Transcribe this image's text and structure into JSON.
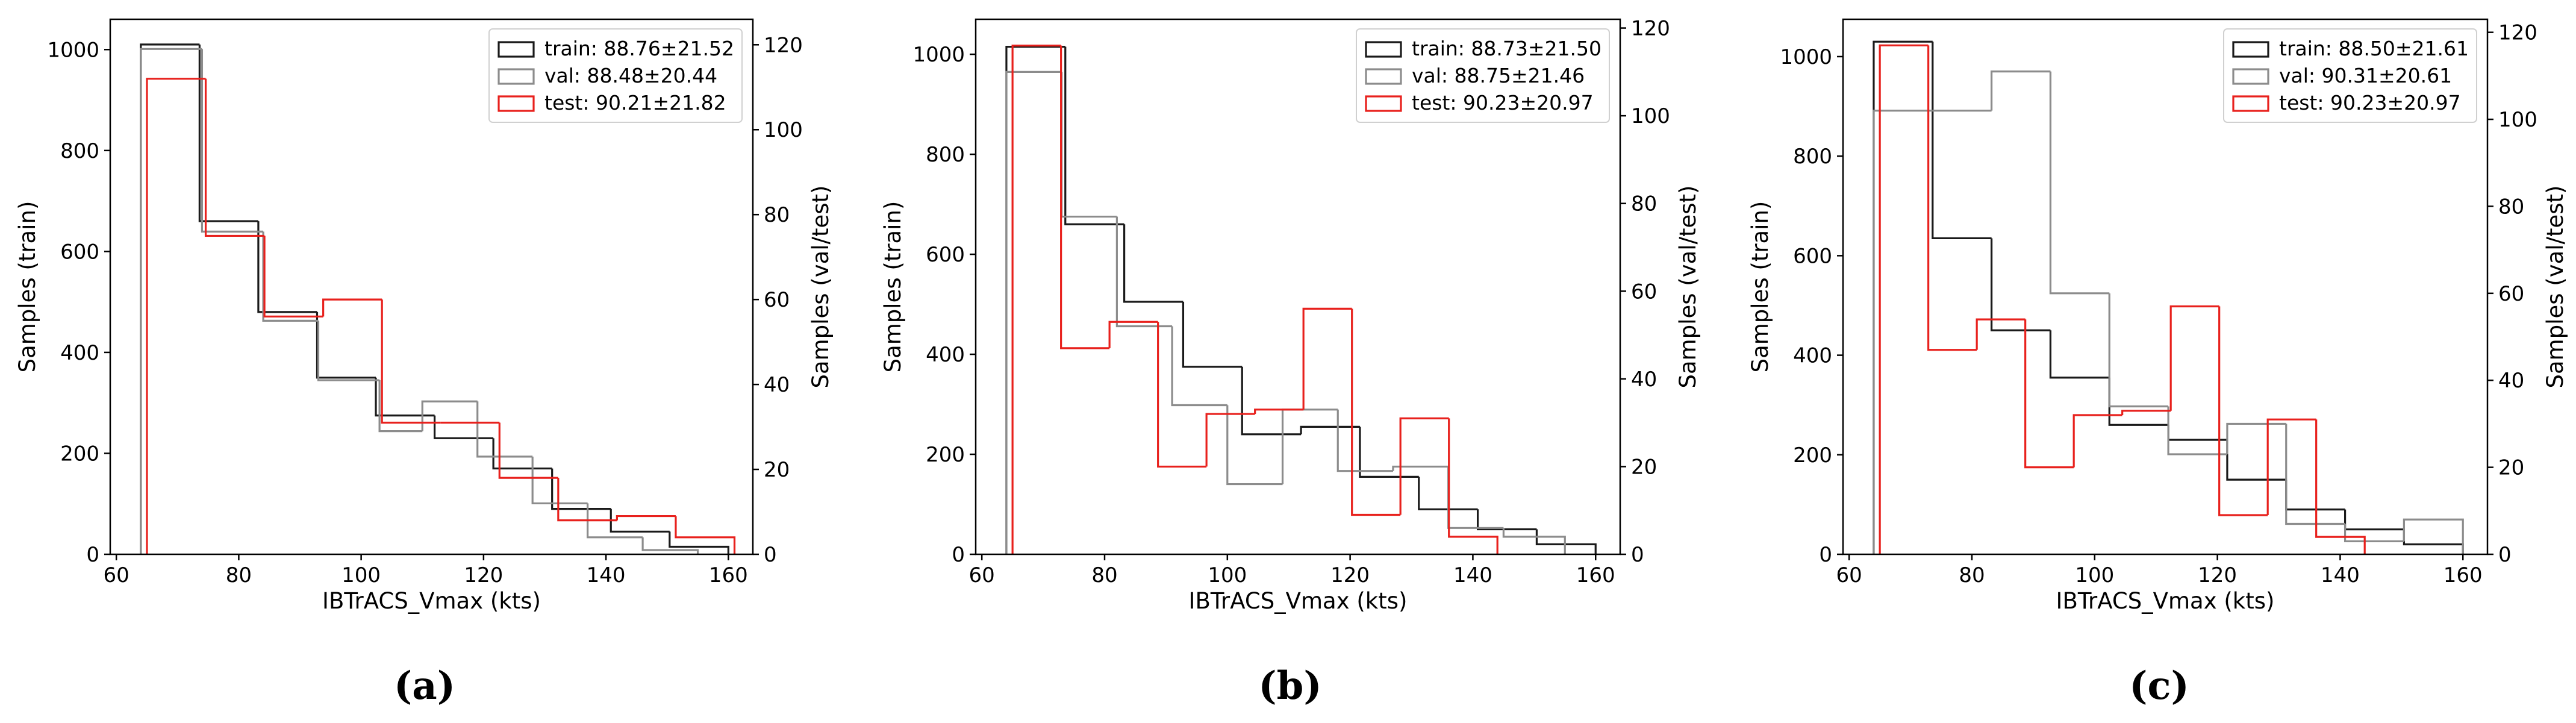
{
  "figure": {
    "panel_labels": [
      "(a)",
      "(b)",
      "(c)"
    ],
    "colors": {
      "train": "#1a1a1a",
      "val": "#8c8c8c",
      "test": "#e8211d",
      "axis": "#000000"
    }
  },
  "chart_data": [
    {
      "type": "histogram-step",
      "panel": "(a)",
      "xlabel": "IBTrACS_Vmax (kts)",
      "ylabel_left": "Samples (train)",
      "ylabel_right": "Samples (val/test)",
      "xlim": [
        59,
        164
      ],
      "xticks": [
        60,
        80,
        100,
        120,
        140,
        160
      ],
      "ylim_left": [
        0,
        1060
      ],
      "yticks_left": [
        0,
        200,
        400,
        600,
        800,
        1000
      ],
      "ylim_right": [
        0,
        126
      ],
      "yticks_right": [
        0,
        20,
        40,
        60,
        80,
        100,
        120
      ],
      "legend_position": "top-right",
      "series": [
        {
          "key": "train",
          "name": "train: 88.76±21.52",
          "axis": "left",
          "bins": [
            64,
            73.6,
            83.2,
            92.8,
            102.4,
            112,
            121.6,
            131.2,
            140.8,
            150.4,
            160
          ],
          "values": [
            1010,
            660,
            480,
            350,
            275,
            230,
            170,
            90,
            45,
            15
          ]
        },
        {
          "key": "val",
          "name": "val: 88.48±20.44",
          "axis": "right",
          "bins": [
            64,
            74,
            84,
            93,
            103,
            110,
            119,
            128,
            137,
            146,
            155
          ],
          "values": [
            119,
            76,
            55,
            41,
            29,
            36,
            23,
            12,
            4,
            1
          ]
        },
        {
          "key": "test",
          "name": "test: 90.21±21.82",
          "axis": "right",
          "bins": [
            65,
            74.6,
            84.2,
            93.8,
            103.4,
            113,
            122.6,
            132.2,
            141.8,
            151.4,
            161
          ],
          "values": [
            112,
            75,
            56,
            60,
            31,
            31,
            18,
            8,
            9,
            4
          ]
        }
      ]
    },
    {
      "type": "histogram-step",
      "panel": "(b)",
      "xlabel": "IBTrACS_Vmax (kts)",
      "ylabel_left": "Samples (train)",
      "ylabel_right": "Samples (val/test)",
      "xlim": [
        59,
        164
      ],
      "xticks": [
        60,
        80,
        100,
        120,
        140,
        160
      ],
      "ylim_left": [
        0,
        1070
      ],
      "yticks_left": [
        0,
        200,
        400,
        600,
        800,
        1000
      ],
      "ylim_right": [
        0,
        122
      ],
      "yticks_right": [
        0,
        20,
        40,
        60,
        80,
        100,
        120
      ],
      "legend_position": "top-right",
      "series": [
        {
          "key": "train",
          "name": "train: 88.73±21.50",
          "axis": "left",
          "bins": [
            64,
            73.6,
            83.2,
            92.8,
            102.4,
            112,
            121.6,
            131.2,
            140.8,
            150.4,
            160
          ],
          "values": [
            1015,
            660,
            505,
            375,
            240,
            255,
            155,
            90,
            50,
            20
          ]
        },
        {
          "key": "val",
          "name": "val: 88.75±21.46",
          "axis": "right",
          "bins": [
            64,
            73,
            82,
            91,
            100,
            109,
            118,
            127,
            136,
            145,
            155
          ],
          "values": [
            110,
            77,
            52,
            34,
            16,
            33,
            19,
            20,
            6,
            4
          ]
        },
        {
          "key": "test",
          "name": "test: 90.23±20.97",
          "axis": "right",
          "bins": [
            65,
            72.9,
            80.8,
            88.7,
            96.6,
            104.5,
            112.4,
            120.3,
            128.2,
            136.1,
            144
          ],
          "values": [
            116,
            47,
            53,
            20,
            32,
            33,
            56,
            9,
            31,
            4
          ]
        }
      ]
    },
    {
      "type": "histogram-step",
      "panel": "(c)",
      "xlabel": "IBTrACS_Vmax (kts)",
      "ylabel_left": "Samples (train)",
      "ylabel_right": "Samples (val/test)",
      "xlim": [
        59,
        164
      ],
      "xticks": [
        60,
        80,
        100,
        120,
        140,
        160
      ],
      "ylim_left": [
        0,
        1075
      ],
      "yticks_left": [
        0,
        200,
        400,
        600,
        800,
        1000
      ],
      "ylim_right": [
        0,
        123
      ],
      "yticks_right": [
        0,
        20,
        40,
        60,
        80,
        100,
        120
      ],
      "legend_position": "top-right",
      "series": [
        {
          "key": "train",
          "name": "train: 88.50±21.61",
          "axis": "left",
          "bins": [
            64,
            73.6,
            83.2,
            92.8,
            102.4,
            112,
            121.6,
            131.2,
            140.8,
            150.4,
            160
          ],
          "values": [
            1030,
            635,
            450,
            355,
            260,
            230,
            150,
            90,
            50,
            20
          ]
        },
        {
          "key": "val",
          "name": "val: 90.31±20.61",
          "axis": "right",
          "bins": [
            64,
            73.6,
            83.2,
            92.8,
            102.4,
            112,
            121.6,
            131.2,
            140.8,
            150.4,
            160
          ],
          "values": [
            102,
            102,
            111,
            60,
            34,
            23,
            30,
            7,
            3,
            8
          ]
        },
        {
          "key": "test",
          "name": "test: 90.23±20.97",
          "axis": "right",
          "bins": [
            65,
            72.9,
            80.8,
            88.7,
            96.6,
            104.5,
            112.4,
            120.3,
            128.2,
            136.1,
            144
          ],
          "values": [
            117,
            47,
            54,
            20,
            32,
            33,
            57,
            9,
            31,
            4
          ]
        }
      ]
    }
  ]
}
